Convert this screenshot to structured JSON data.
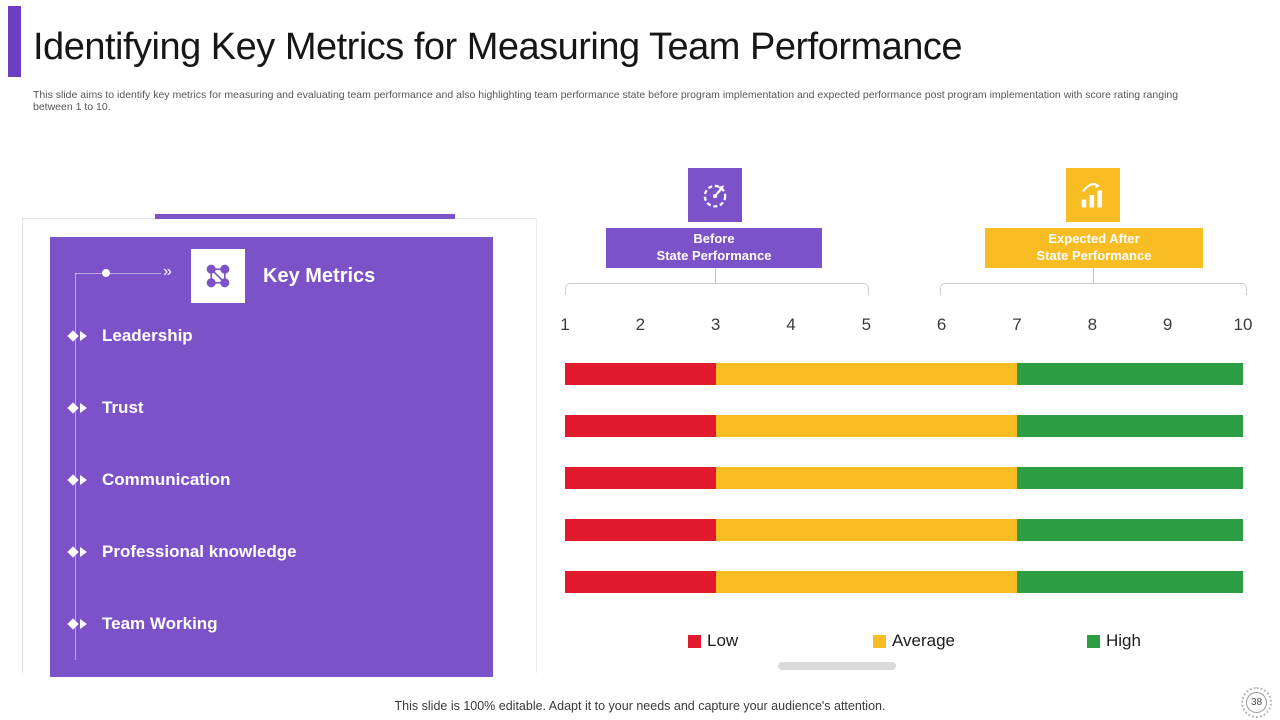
{
  "slide": {
    "title": "Identifying Key Metrics for Measuring Team Performance",
    "subtitle": "This slide aims to identify key metrics for measuring and evaluating team performance and also highlighting team performance state before program implementation and expected performance post program implementation with score rating ranging between 1 to 10.",
    "footer_note": "This slide is 100% editable. Adapt it to your needs and capture your audience's attention.",
    "page_number": "38"
  },
  "key_metrics": {
    "header": "Key Metrics",
    "items": [
      "Leadership",
      "Trust",
      "Communication",
      "Professional knowledge",
      "Team Working"
    ]
  },
  "states": {
    "before": {
      "line1": "Before",
      "line2": "State Performance",
      "scale_span": [
        1,
        5
      ]
    },
    "after": {
      "line1": "Expected After",
      "line2": "State Performance",
      "scale_span": [
        6,
        10
      ]
    }
  },
  "legend": [
    {
      "label": "Low",
      "color": "#E1192D"
    },
    {
      "label": "Average",
      "color": "#F9BD24"
    },
    {
      "label": "High",
      "color": "#2E9E44"
    }
  ],
  "chart_data": {
    "type": "bar",
    "orientation": "horizontal",
    "stacked": true,
    "x_ticks": [
      "1",
      "2",
      "3",
      "4",
      "5",
      "6",
      "7",
      "8",
      "9",
      "10"
    ],
    "x_range": [
      1,
      10
    ],
    "categories": [
      "Leadership",
      "Trust",
      "Communication",
      "Professional knowledge",
      "Team Working"
    ],
    "series": [
      {
        "name": "Low",
        "color": "#E1192D",
        "band": [
          1,
          3
        ],
        "values": [
          2,
          2,
          2,
          2,
          2
        ]
      },
      {
        "name": "Average",
        "color": "#F9BD24",
        "band": [
          3,
          7
        ],
        "values": [
          4,
          4,
          4,
          4,
          4
        ]
      },
      {
        "name": "High",
        "color": "#2E9E44",
        "band": [
          7,
          10
        ],
        "values": [
          3,
          3,
          3,
          3,
          3
        ]
      }
    ]
  },
  "colors": {
    "purple": "#7C52C8",
    "purpleDark": "#6C3EC0",
    "amber": "#F9BD24",
    "red": "#E1192D",
    "green": "#2E9E44"
  }
}
